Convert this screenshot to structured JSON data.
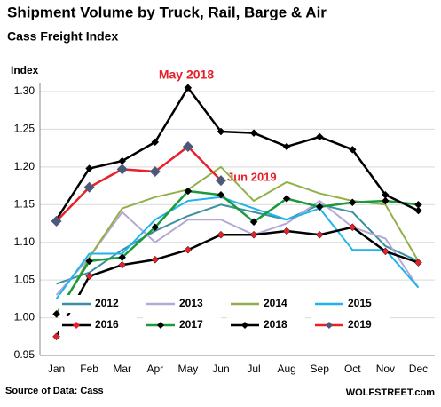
{
  "chart_data": {
    "type": "line",
    "title": "Shipment Volume by Truck, Rail, Barge & Air",
    "subtitle": "Cass Freight Index",
    "y_label": "Index",
    "source": "Source of Data: Cass",
    "credit": "WOLFSTREET.com",
    "annotations": [
      {
        "text": "May 2018",
        "color": "#e8202a"
      },
      {
        "text": "Jun 2019",
        "color": "#e8202a"
      }
    ],
    "categories": [
      "Jan",
      "Feb",
      "Mar",
      "Apr",
      "May",
      "Jun",
      "Jul",
      "Aug",
      "Sep",
      "Oct",
      "Nov",
      "Dec"
    ],
    "ylim": [
      0.95,
      1.3
    ],
    "yticks": [
      0.95,
      {
        "value": 1,
        "label": "1.00"
      },
      1.05,
      {
        "value": 1.1,
        "label": "1.10"
      },
      1.15,
      {
        "value": 1.2,
        "label": "1.20"
      },
      1.25,
      {
        "value": 1.3,
        "label": "1.30"
      }
    ],
    "grid": true,
    "series": [
      {
        "name": "2012",
        "color": "#3a8fa0",
        "values": [
          1.045,
          1.06,
          1.09,
          1.115,
          1.135,
          1.15,
          1.14,
          1.13,
          1.15,
          1.14,
          1.095,
          1.075
        ]
      },
      {
        "name": "2013",
        "color": "#b5a8d6",
        "values": [
          1.03,
          1.08,
          1.14,
          1.1,
          1.13,
          1.13,
          1.11,
          1.125,
          1.155,
          1.12,
          1.105,
          1.04
        ]
      },
      {
        "name": "2014",
        "color": "#92b04a",
        "values": [
          1.0,
          1.08,
          1.145,
          1.16,
          1.17,
          1.2,
          1.155,
          1.18,
          1.165,
          1.155,
          1.15,
          1.075
        ]
      },
      {
        "name": "2015",
        "color": "#1eb4ec",
        "values": [
          1.025,
          1.085,
          1.085,
          1.13,
          1.155,
          1.16,
          1.145,
          1.13,
          1.145,
          1.09,
          1.09,
          1.04
        ]
      },
      {
        "name": "2016",
        "color": "#000000",
        "marker_color": "#e8202a",
        "values": [
          0.975,
          1.055,
          1.07,
          1.077,
          1.09,
          1.11,
          1.11,
          1.115,
          1.11,
          1.12,
          1.088,
          1.073
        ]
      },
      {
        "name": "2017",
        "color": "#1a9a3a",
        "marker_color": "#000000",
        "values": [
          1.005,
          1.075,
          1.08,
          1.12,
          1.168,
          1.163,
          1.127,
          1.158,
          1.147,
          1.153,
          1.155,
          1.15
        ]
      },
      {
        "name": "2018",
        "color": "#000000",
        "marker_color": "#000000",
        "values": [
          1.13,
          1.198,
          1.208,
          1.233,
          1.305,
          1.247,
          1.245,
          1.227,
          1.24,
          1.223,
          1.163,
          1.142
        ]
      },
      {
        "name": "2019",
        "color": "#e8202a",
        "marker_color": "#4a5a78",
        "values": [
          1.128,
          1.173,
          1.197,
          1.194,
          1.227,
          1.182,
          null,
          null,
          null,
          null,
          null,
          null
        ]
      }
    ]
  }
}
